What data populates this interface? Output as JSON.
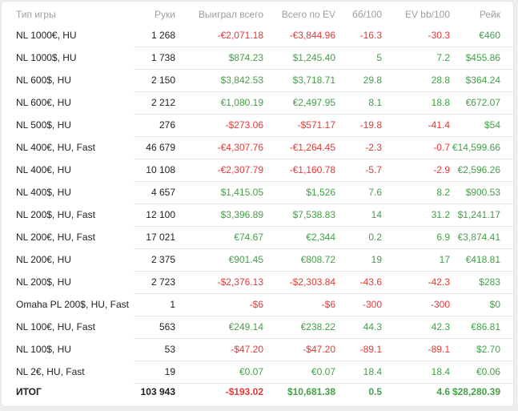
{
  "colors": {
    "negative": "#e53935",
    "positive": "#43a047",
    "header_text": "#9e9e9e"
  },
  "columns": [
    "Тип игры",
    "Руки",
    "Выиграл всего",
    "Всего по EV",
    "бб/100",
    "EV bb/100",
    "Рейк"
  ],
  "rows": [
    [
      "NL 1000€, HU",
      "1 268",
      "-€2,071.18",
      "-€3,844.96",
      "-16.3",
      "-30.3",
      "€460"
    ],
    [
      "NL 1000$, HU",
      "1 738",
      "$874.23",
      "$1,245.40",
      "5",
      "7.2",
      "$455.86"
    ],
    [
      "NL 600$, HU",
      "2 150",
      "$3,842.53",
      "$3,718.71",
      "29.8",
      "28.8",
      "$364.24"
    ],
    [
      "NL 600€, HU",
      "2 212",
      "€1,080.19",
      "€2,497.95",
      "8.1",
      "18.8",
      "€672.07"
    ],
    [
      "NL 500$, HU",
      "276",
      "-$273.06",
      "-$571.17",
      "-19.8",
      "-41.4",
      "$54"
    ],
    [
      "NL 400€, HU, Fast",
      "46 679",
      "-€4,307.76",
      "-€1,264.45",
      "-2.3",
      "-0.7",
      "€14,599.66"
    ],
    [
      "NL 400€, HU",
      "10 108",
      "-€2,307.79",
      "-€1,160.78",
      "-5.7",
      "-2.9",
      "€2,596.26"
    ],
    [
      "NL 400$, HU",
      "4 657",
      "$1,415.05",
      "$1,526",
      "7.6",
      "8.2",
      "$900.53"
    ],
    [
      "NL 200$, HU, Fast",
      "12 100",
      "$3,396.89",
      "$7,538.83",
      "14",
      "31.2",
      "$1,241.17"
    ],
    [
      "NL 200€, HU, Fast",
      "17 021",
      "€74.67",
      "€2,344",
      "0.2",
      "6.9",
      "€3,874.41"
    ],
    [
      "NL 200€, HU",
      "2 375",
      "€901.45",
      "€808.72",
      "19",
      "17",
      "€418.81"
    ],
    [
      "NL 200$, HU",
      "2 723",
      "-$2,376.13",
      "-$2,303.84",
      "-43.6",
      "-42.3",
      "$283"
    ],
    [
      "Omaha PL 200$, HU, Fast",
      "1",
      "-$6",
      "-$6",
      "-300",
      "-300",
      "$0"
    ],
    [
      "NL 100€, HU, Fast",
      "563",
      "€249.14",
      "€238.22",
      "44.3",
      "42.3",
      "€86.81"
    ],
    [
      "NL 100$, HU",
      "53",
      "-$47.20",
      "-$47.20",
      "-89.1",
      "-89.1",
      "$2.70"
    ],
    [
      "NL 2€, HU, Fast",
      "19",
      "€0.07",
      "€0.07",
      "18.4",
      "18.4",
      "€0.06"
    ]
  ],
  "total": [
    "ИТОГ",
    "103 943",
    "-$193.02",
    "$10,681.38",
    "0.5",
    "4.6",
    "$28,280.39"
  ]
}
